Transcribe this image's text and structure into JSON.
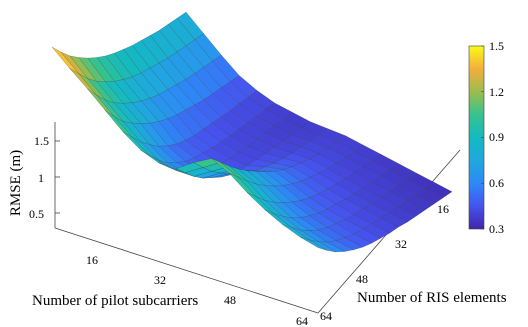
{
  "chart_data": {
    "type": "surface3d",
    "zlabel": "RMSE (m)",
    "xlabel": "Number of pilot subcarriers",
    "ylabel": "Number of RIS elements",
    "x_ticks": [
      "16",
      "32",
      "48",
      "64"
    ],
    "y_ticks": [
      "16",
      "32",
      "48",
      "64"
    ],
    "z_ticks": [
      "0.5",
      "1",
      "1.5"
    ],
    "zlim": [
      0.3,
      1.5
    ],
    "colorbar": {
      "min": 0.3,
      "max": 1.5,
      "ticks": [
        "0.3",
        "0.6",
        "0.9",
        "1.2",
        "1.5"
      ]
    },
    "colormap": "parula",
    "x": [
      4,
      8,
      12,
      16,
      20,
      24,
      28,
      32,
      36,
      40,
      44,
      48,
      52,
      56,
      60,
      64
    ],
    "y": [
      4,
      8,
      12,
      16,
      20,
      24,
      28,
      32,
      36,
      40,
      44,
      48,
      52,
      56,
      60,
      64
    ],
    "z": [
      [
        1.5,
        1.39,
        1.29,
        1.21,
        1.14,
        1.08,
        1.03,
        0.99,
        0.96,
        0.93,
        0.91,
        0.89,
        0.87,
        0.86,
        0.85,
        0.84
      ],
      [
        1.38,
        1.27,
        1.16,
        1.07,
        1.0,
        0.94,
        0.89,
        0.85,
        0.82,
        0.8,
        0.78,
        0.76,
        0.75,
        0.74,
        0.73,
        0.72
      ],
      [
        1.27,
        1.15,
        1.04,
        0.95,
        0.88,
        0.82,
        0.77,
        0.73,
        0.7,
        0.68,
        0.66,
        0.64,
        0.63,
        0.62,
        0.61,
        0.6
      ],
      [
        1.15,
        1.03,
        0.92,
        0.84,
        0.77,
        0.71,
        0.66,
        0.62,
        0.59,
        0.57,
        0.55,
        0.53,
        0.52,
        0.51,
        0.5,
        0.49
      ],
      [
        1.03,
        0.92,
        0.81,
        0.72,
        0.64,
        0.58,
        0.53,
        0.5,
        0.48,
        0.47,
        0.46,
        0.45,
        0.44,
        0.44,
        0.43,
        0.43
      ],
      [
        0.94,
        0.83,
        0.72,
        0.63,
        0.57,
        0.51,
        0.48,
        0.46,
        0.44,
        0.43,
        0.42,
        0.41,
        0.41,
        0.4,
        0.4,
        0.39
      ],
      [
        0.9,
        0.8,
        0.7,
        0.62,
        0.56,
        0.5,
        0.46,
        0.44,
        0.42,
        0.41,
        0.4,
        0.4,
        0.39,
        0.39,
        0.38,
        0.38
      ],
      [
        0.92,
        0.82,
        0.72,
        0.64,
        0.58,
        0.52,
        0.48,
        0.45,
        0.43,
        0.42,
        0.41,
        0.4,
        0.39,
        0.38,
        0.38,
        0.37
      ],
      [
        1.05,
        0.94,
        0.84,
        0.76,
        0.69,
        0.63,
        0.57,
        0.52,
        0.49,
        0.46,
        0.44,
        0.42,
        0.41,
        0.4,
        0.39,
        0.38
      ],
      [
        1.16,
        1.06,
        0.96,
        0.87,
        0.79,
        0.72,
        0.65,
        0.59,
        0.54,
        0.5,
        0.47,
        0.44,
        0.42,
        0.41,
        0.4,
        0.39
      ],
      [
        1.1,
        1.0,
        0.9,
        0.81,
        0.73,
        0.66,
        0.6,
        0.55,
        0.51,
        0.48,
        0.45,
        0.43,
        0.41,
        0.4,
        0.39,
        0.38
      ],
      [
        1.0,
        0.9,
        0.8,
        0.72,
        0.65,
        0.59,
        0.54,
        0.5,
        0.47,
        0.45,
        0.43,
        0.41,
        0.4,
        0.39,
        0.38,
        0.37
      ],
      [
        0.92,
        0.82,
        0.73,
        0.65,
        0.59,
        0.54,
        0.5,
        0.47,
        0.45,
        0.43,
        0.41,
        0.4,
        0.39,
        0.38,
        0.37,
        0.36
      ],
      [
        0.86,
        0.77,
        0.68,
        0.61,
        0.55,
        0.51,
        0.48,
        0.45,
        0.43,
        0.42,
        0.4,
        0.39,
        0.38,
        0.37,
        0.36,
        0.35
      ],
      [
        0.82,
        0.73,
        0.65,
        0.58,
        0.53,
        0.49,
        0.46,
        0.44,
        0.42,
        0.41,
        0.39,
        0.38,
        0.37,
        0.36,
        0.35,
        0.34
      ],
      [
        0.8,
        0.71,
        0.63,
        0.57,
        0.52,
        0.48,
        0.45,
        0.43,
        0.41,
        0.4,
        0.38,
        0.37,
        0.36,
        0.35,
        0.34,
        0.33
      ]
    ]
  }
}
